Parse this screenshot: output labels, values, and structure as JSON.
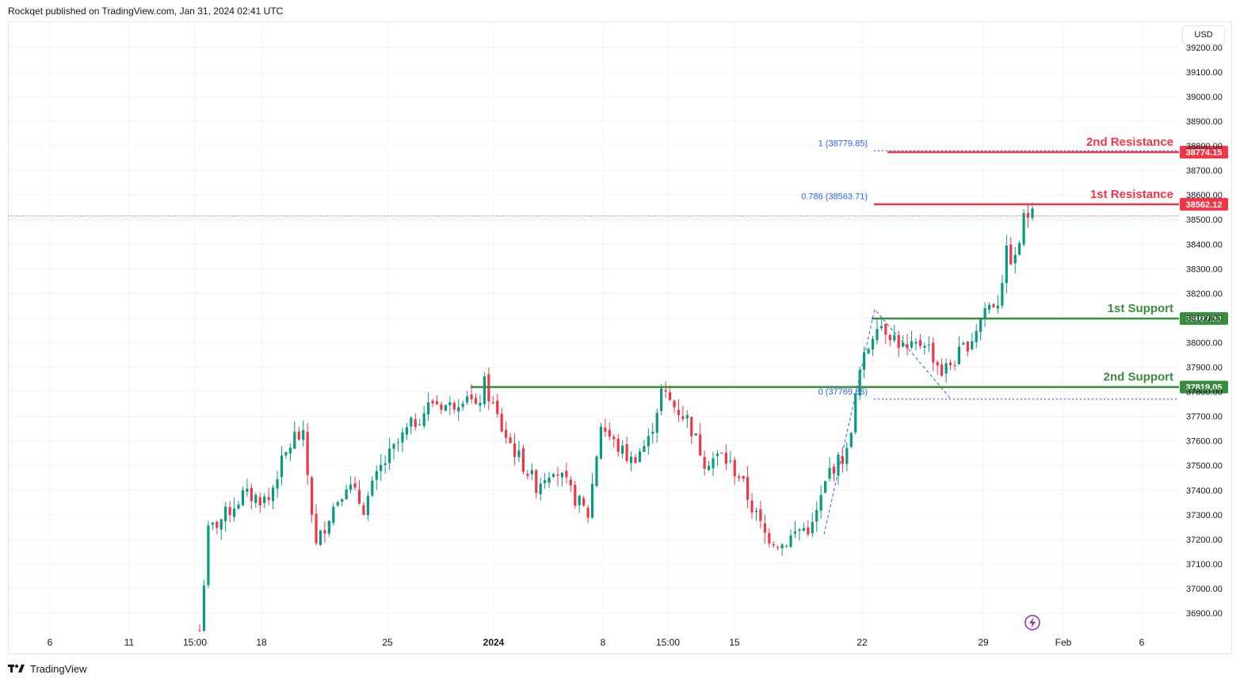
{
  "header": {
    "publisher": "Rockqet published on TradingView.com, Jan 31, 2024 02:41 UTC"
  },
  "currency": "USD",
  "footer": {
    "brand": "TradingView"
  },
  "colors": {
    "up": "#089981",
    "down": "#f23645",
    "support": "#388e3c",
    "resistance": "#f23645",
    "fib": "#2962ff",
    "grid": "#f0f3fa"
  },
  "chart_data": {
    "type": "candlestick",
    "y_range": [
      36820,
      39300
    ],
    "y_ticks": [
      36900,
      37000,
      37100,
      37200,
      37300,
      37400,
      37500,
      37600,
      37700,
      37800,
      37900,
      38000,
      38100,
      38200,
      38300,
      38400,
      38500,
      38600,
      38700,
      38800,
      38900,
      39000,
      39100,
      39200
    ],
    "y_tick_labels": [
      "36900.00",
      "37000.00",
      "37100.00",
      "37200.00",
      "37300.00",
      "37400.00",
      "37500.00",
      "37600.00",
      "37700.00",
      "37800.00",
      "37900.00",
      "38000.00",
      "38100.00",
      "38200.00",
      "38300.00",
      "38400.00",
      "38500.00",
      "38600.00",
      "38700.00",
      "38800.00",
      "38900.00",
      "39000.00",
      "39100.00",
      "39200.00"
    ],
    "x_ticks": [
      {
        "label": "6",
        "bold": false
      },
      {
        "label": "11",
        "bold": false
      },
      {
        "label": "15:00",
        "bold": false
      },
      {
        "label": "18",
        "bold": false
      },
      {
        "label": "25",
        "bold": false
      },
      {
        "label": "2024",
        "bold": true
      },
      {
        "label": "8",
        "bold": false
      },
      {
        "label": "15:00",
        "bold": false
      },
      {
        "label": "15",
        "bold": false
      },
      {
        "label": "22",
        "bold": false
      },
      {
        "label": "29",
        "bold": false
      },
      {
        "label": "Feb",
        "bold": false
      },
      {
        "label": "6",
        "bold": false
      }
    ],
    "levels": [
      {
        "name": "2nd Resistance",
        "price_label": "38774.15",
        "value": 38774.15,
        "kind": "resistance"
      },
      {
        "name": "1st Resistance",
        "price_label": "38562.12",
        "value": 38562.12,
        "kind": "resistance"
      },
      {
        "name": "1st Support",
        "price_label": "38097.50",
        "value": 38097.5,
        "kind": "support"
      },
      {
        "name": "2nd Support",
        "price_label": "37819.05",
        "value": 37819.05,
        "kind": "support"
      }
    ],
    "fib_levels": [
      {
        "label": "1 (38779.85)",
        "value": 38779.85
      },
      {
        "label": "0.786 (38563.71)",
        "value": 38563.71
      },
      {
        "label": "0 (37769.85)",
        "value": 37769.85
      }
    ],
    "current_price": 38515,
    "waypoints": [
      [
        0,
        36830
      ],
      [
        2,
        37230
      ],
      [
        6,
        37300
      ],
      [
        10,
        37380
      ],
      [
        16,
        37360
      ],
      [
        18,
        37470
      ],
      [
        22,
        37620
      ],
      [
        24,
        37610
      ],
      [
        27,
        37170
      ],
      [
        30,
        37300
      ],
      [
        34,
        37430
      ],
      [
        38,
        37330
      ],
      [
        42,
        37490
      ],
      [
        48,
        37640
      ],
      [
        54,
        37760
      ],
      [
        58,
        37740
      ],
      [
        62,
        37800
      ],
      [
        64,
        37720
      ],
      [
        66,
        37830
      ],
      [
        70,
        37650
      ],
      [
        73,
        37560
      ],
      [
        78,
        37420
      ],
      [
        82,
        37500
      ],
      [
        86,
        37390
      ],
      [
        90,
        37300
      ],
      [
        93,
        37670
      ],
      [
        96,
        37590
      ],
      [
        100,
        37520
      ],
      [
        104,
        37600
      ],
      [
        107,
        37800
      ],
      [
        110,
        37740
      ],
      [
        113,
        37690
      ],
      [
        117,
        37520
      ],
      [
        121,
        37540
      ],
      [
        125,
        37460
      ],
      [
        128,
        37330
      ],
      [
        131,
        37220
      ],
      [
        135,
        37180
      ],
      [
        139,
        37240
      ],
      [
        142,
        37250
      ],
      [
        146,
        37480
      ],
      [
        150,
        37550
      ],
      [
        153,
        37880
      ],
      [
        157,
        38090
      ],
      [
        160,
        38040
      ],
      [
        164,
        37960
      ],
      [
        168,
        38010
      ],
      [
        172,
        37880
      ],
      [
        175,
        37930
      ],
      [
        179,
        38020
      ],
      [
        182,
        38140
      ],
      [
        185,
        38170
      ],
      [
        187,
        38360
      ],
      [
        189,
        38330
      ],
      [
        191,
        38500
      ],
      [
        193,
        38540
      ]
    ]
  }
}
